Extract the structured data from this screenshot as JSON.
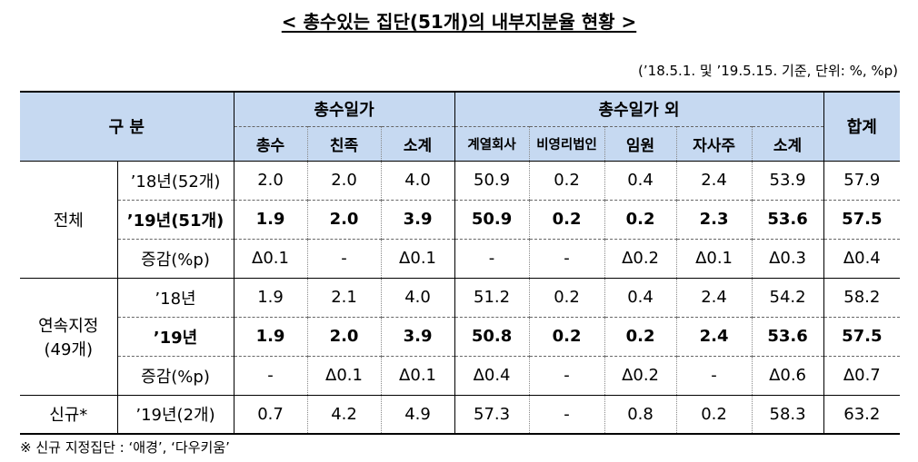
{
  "title": "< 총수있는 집단(51개)의 내부지분율 현황 >",
  "note": "(’18.5.1. 및 ’19.5.15. 기준, 단위: %, %p)",
  "headers": {
    "category": "구 분",
    "family": "총수일가",
    "other": "총수일가 외",
    "total": "합계",
    "cols": [
      "총수",
      "친족",
      "소계",
      "계열회사",
      "비영리법인",
      "임원",
      "자사주",
      "소계"
    ]
  },
  "groups": [
    {
      "name": "전체",
      "rows": [
        {
          "label": "’18년(52개)",
          "bold": false,
          "values": [
            "2.0",
            "2.0",
            "4.0",
            "50.9",
            "0.2",
            "0.4",
            "2.4",
            "53.9",
            "57.9"
          ]
        },
        {
          "label": "’19년(51개)",
          "bold": true,
          "values": [
            "1.9",
            "2.0",
            "3.9",
            "50.9",
            "0.2",
            "0.2",
            "2.3",
            "53.6",
            "57.5"
          ]
        },
        {
          "label": "증감(%p)",
          "bold": false,
          "values": [
            "Δ0.1",
            "-",
            "Δ0.1",
            "-",
            "-",
            "Δ0.2",
            "Δ0.1",
            "Δ0.3",
            "Δ0.4"
          ]
        }
      ]
    },
    {
      "name": "연속지정",
      "name2": "(49개)",
      "rows": [
        {
          "label": "’18년",
          "bold": false,
          "values": [
            "1.9",
            "2.1",
            "4.0",
            "51.2",
            "0.2",
            "0.4",
            "2.4",
            "54.2",
            "58.2"
          ]
        },
        {
          "label": "’19년",
          "bold": true,
          "values": [
            "1.9",
            "2.0",
            "3.9",
            "50.8",
            "0.2",
            "0.2",
            "2.4",
            "53.6",
            "57.5"
          ]
        },
        {
          "label": "증감(%p)",
          "bold": false,
          "values": [
            "-",
            "Δ0.1",
            "Δ0.1",
            "Δ0.4",
            "-",
            "Δ0.2",
            "-",
            "Δ0.6",
            "Δ0.7"
          ]
        }
      ]
    },
    {
      "name": "신규*",
      "rows": [
        {
          "label": "’19년(2개)",
          "bold": false,
          "values": [
            "0.7",
            "4.2",
            "4.9",
            "57.3",
            "-",
            "0.8",
            "0.2",
            "58.3",
            "63.2"
          ]
        }
      ]
    }
  ],
  "footer": "※ 신규 지정집단 : ‘애경’, ‘다우키움’"
}
